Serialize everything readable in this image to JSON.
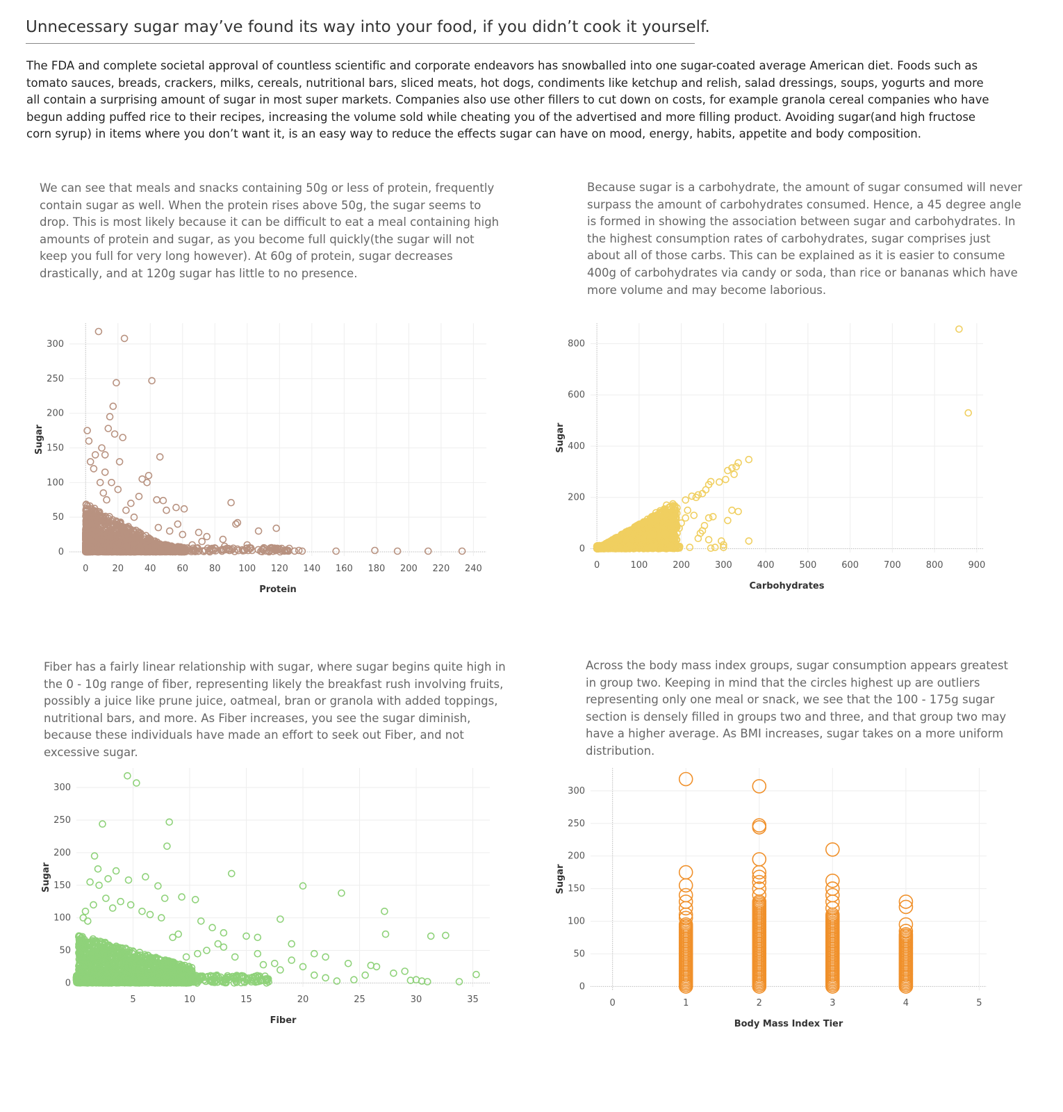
{
  "title": "Unnecessary sugar may’ve found its way into your food, if you didn’t cook it yourself.",
  "intro": "The FDA and complete societal approval of countless scientific and corporate endeavors has snowballed into one sugar-coated average American diet. Foods such as tomato sauces, breads, crackers, milks, cereals, nutritional bars, sliced meats, hot dogs, condiments like ketchup and relish, salad dressings, soups, yogurts and more all contain a surprising amount of sugar in most super markets. Companies also use other fillers to cut down on costs, for example granola cereal companies who have begun adding puffed rice to their recipes, increasing the volume sold while cheating you of the advertised and more filling product. Avoiding sugar(and high fructose corn syrup) in items where you don’t want it, is an easy way to reduce the effects sugar can have on mood, energy, habits, appetite and body composition.",
  "descriptions": {
    "protein": "We can see that meals and snacks containing 50g or less of protein, frequently contain sugar as well. When the protein rises above 50g, the sugar seems to drop. This is most likely because it can be difficult to eat a meal containing high amounts of protein and sugar, as you become full quickly(the sugar will not keep you full for very long however). At 60g of protein, sugar decreases drastically, and at 120g sugar has little to no presence.",
    "carbs": "Because sugar is a carbohydrate, the amount of sugar consumed will never surpass the amount of carbohydrates consumed. Hence, a 45 degree angle is formed in showing the association between sugar and carbohydrates. In the highest consumption rates of carbohydrates, sugar comprises just about all of those carbs. This can be explained as it is easier to consume 400g of carbohydrates via candy or soda, than rice or bananas which have more volume and may become laborious.",
    "fiber": "Fiber has a fairly linear relationship with sugar, where sugar begins quite high in the 0 - 10g range of fiber, representing likely the breakfast rush involving fruits, possibly a juice like prune juice, oatmeal, bran or granola with added toppings, nutritional bars, and more. As Fiber increases, you see the sugar diminish, because these individuals have made an effort to seek out Fiber, and not excessive sugar.",
    "bmi": "Across the body mass index groups, sugar consumption appears greatest in group two. Keeping in mind that the circles highest up are outliers representing only one meal or snack, we see that the 100 - 175g sugar section is densely filled in groups two and three, and that group two may have a higher average. As BMI increases, sugar takes on a more uniform distribution."
  },
  "chart_data": [
    {
      "id": "protein",
      "type": "scatter",
      "xlabel": "Protein",
      "ylabel": "Sugar",
      "color": "#b89280",
      "xlim": [
        -10,
        248
      ],
      "ylim": [
        -6,
        330
      ],
      "xticks": [
        0,
        20,
        40,
        60,
        80,
        100,
        120,
        140,
        160,
        180,
        200,
        220,
        240
      ],
      "yticks": [
        0,
        50,
        100,
        150,
        200,
        250,
        300
      ],
      "points": [
        [
          8,
          318
        ],
        [
          24,
          308
        ],
        [
          19,
          244
        ],
        [
          41,
          247
        ],
        [
          17,
          210
        ],
        [
          15,
          195
        ],
        [
          14,
          178
        ],
        [
          18,
          170
        ],
        [
          23,
          165
        ],
        [
          46,
          137
        ],
        [
          1,
          175
        ],
        [
          2,
          160
        ],
        [
          10,
          150
        ],
        [
          12,
          140
        ],
        [
          21,
          130
        ],
        [
          35,
          105
        ],
        [
          38,
          100
        ],
        [
          39,
          110
        ],
        [
          44,
          75
        ],
        [
          48,
          74
        ],
        [
          56,
          64
        ],
        [
          61,
          62
        ],
        [
          50,
          60
        ],
        [
          57,
          40
        ],
        [
          90,
          71
        ],
        [
          94,
          42
        ],
        [
          93,
          40
        ],
        [
          107,
          30
        ],
        [
          118,
          34
        ],
        [
          70,
          28
        ],
        [
          75,
          22
        ],
        [
          85,
          18
        ],
        [
          100,
          10
        ],
        [
          110,
          3
        ],
        [
          120,
          4
        ],
        [
          126,
          5
        ],
        [
          132,
          2
        ],
        [
          134,
          1
        ],
        [
          155,
          1
        ],
        [
          179,
          2
        ],
        [
          193,
          1
        ],
        [
          212,
          1
        ],
        [
          233,
          1
        ],
        [
          80,
          5
        ],
        [
          86,
          8
        ],
        [
          97,
          3
        ],
        [
          103,
          2
        ],
        [
          115,
          6
        ],
        [
          123,
          1
        ],
        [
          66,
          10
        ],
        [
          72,
          15
        ],
        [
          60,
          25
        ],
        [
          52,
          30
        ],
        [
          45,
          35
        ],
        [
          30,
          50
        ],
        [
          25,
          60
        ],
        [
          28,
          70
        ],
        [
          33,
          80
        ],
        [
          20,
          90
        ],
        [
          16,
          100
        ],
        [
          12,
          115
        ],
        [
          5,
          120
        ],
        [
          3,
          130
        ],
        [
          6,
          140
        ],
        [
          9,
          100
        ],
        [
          11,
          85
        ],
        [
          13,
          75
        ]
      ],
      "dense": [
        [
          0,
          0,
          45,
          70,
          900,
          "tri"
        ],
        [
          0,
          0,
          62,
          30,
          500,
          "tri"
        ],
        [
          0,
          0,
          130,
          6,
          300,
          "band"
        ]
      ]
    },
    {
      "id": "carbs",
      "type": "scatter",
      "xlabel": "Carbohydrates",
      "ylabel": "Sugar",
      "color": "#f0cf60",
      "xlim": [
        -15,
        915
      ],
      "ylim": [
        -15,
        880
      ],
      "xticks": [
        0,
        100,
        200,
        300,
        400,
        500,
        600,
        700,
        800,
        900
      ],
      "yticks": [
        0,
        200,
        400,
        600,
        800
      ],
      "points": [
        [
          858,
          857
        ],
        [
          880,
          530
        ],
        [
          360,
          348
        ],
        [
          335,
          335
        ],
        [
          330,
          320
        ],
        [
          320,
          315
        ],
        [
          310,
          305
        ],
        [
          325,
          290
        ],
        [
          305,
          270
        ],
        [
          290,
          260
        ],
        [
          270,
          262
        ],
        [
          265,
          250
        ],
        [
          258,
          230
        ],
        [
          250,
          215
        ],
        [
          240,
          210
        ],
        [
          235,
          200
        ],
        [
          225,
          205
        ],
        [
          210,
          190
        ],
        [
          320,
          150
        ],
        [
          335,
          145
        ],
        [
          310,
          110
        ],
        [
          275,
          125
        ],
        [
          265,
          120
        ],
        [
          255,
          90
        ],
        [
          250,
          70
        ],
        [
          245,
          60
        ],
        [
          240,
          40
        ],
        [
          265,
          35
        ],
        [
          295,
          30
        ],
        [
          300,
          15
        ],
        [
          360,
          30
        ],
        [
          300,
          5
        ],
        [
          280,
          5
        ],
        [
          270,
          2
        ],
        [
          220,
          5
        ],
        [
          215,
          150
        ],
        [
          230,
          130
        ],
        [
          210,
          120
        ],
        [
          200,
          100
        ],
        [
          195,
          80
        ],
        [
          190,
          60
        ],
        [
          185,
          40
        ],
        [
          180,
          20
        ],
        [
          175,
          10
        ],
        [
          172,
          160
        ],
        [
          180,
          175
        ],
        [
          165,
          170
        ],
        [
          160,
          155
        ],
        [
          150,
          148
        ],
        [
          140,
          140
        ],
        [
          130,
          125
        ],
        [
          120,
          115
        ],
        [
          110,
          100
        ],
        [
          100,
          95
        ]
      ],
      "dense": [
        [
          0,
          0,
          190,
          170,
          1400,
          "under"
        ],
        [
          0,
          0,
          200,
          12,
          300,
          "band"
        ]
      ]
    },
    {
      "id": "fiber",
      "type": "scatter",
      "xlabel": "Fiber",
      "ylabel": "Sugar",
      "color": "#8fd27a",
      "xlim": [
        0,
        36.5
      ],
      "ylim": [
        -6,
        330
      ],
      "xticks": [
        5,
        10,
        15,
        20,
        25,
        30,
        35
      ],
      "yticks": [
        0,
        50,
        100,
        150,
        200,
        250,
        300
      ],
      "points": [
        [
          4.5,
          318
        ],
        [
          5.3,
          307
        ],
        [
          2.3,
          244
        ],
        [
          8.2,
          247
        ],
        [
          8.0,
          210
        ],
        [
          1.6,
          195
        ],
        [
          1.9,
          175
        ],
        [
          2.8,
          160
        ],
        [
          3.5,
          172
        ],
        [
          4.6,
          158
        ],
        [
          6.1,
          163
        ],
        [
          1.2,
          155
        ],
        [
          2.0,
          150
        ],
        [
          7.2,
          149
        ],
        [
          7.8,
          130
        ],
        [
          9.3,
          132
        ],
        [
          10.5,
          128
        ],
        [
          13.7,
          168
        ],
        [
          20,
          149
        ],
        [
          23.4,
          138
        ],
        [
          27.2,
          110
        ],
        [
          27.3,
          75
        ],
        [
          31.3,
          72
        ],
        [
          32.6,
          73
        ],
        [
          18,
          98
        ],
        [
          19,
          60
        ],
        [
          21,
          45
        ],
        [
          15,
          72
        ],
        [
          16,
          70
        ],
        [
          12,
          85
        ],
        [
          11,
          95
        ],
        [
          13,
          77
        ],
        [
          22,
          40
        ],
        [
          24,
          30
        ],
        [
          26,
          27
        ],
        [
          28,
          15
        ],
        [
          29,
          18
        ],
        [
          30,
          5
        ],
        [
          30.5,
          3
        ],
        [
          29.5,
          4
        ],
        [
          31,
          2
        ],
        [
          33.8,
          2
        ],
        [
          35.3,
          13
        ],
        [
          26.5,
          25
        ],
        [
          25.5,
          12
        ],
        [
          24.5,
          5
        ],
        [
          23,
          3
        ],
        [
          22,
          8
        ],
        [
          21,
          12
        ],
        [
          20,
          25
        ],
        [
          19,
          35
        ],
        [
          18,
          20
        ],
        [
          17.5,
          30
        ],
        [
          16.5,
          28
        ],
        [
          16,
          45
        ],
        [
          14,
          40
        ],
        [
          13,
          55
        ],
        [
          12.5,
          60
        ],
        [
          11.5,
          50
        ],
        [
          10.7,
          45
        ],
        [
          9.7,
          40
        ],
        [
          9,
          75
        ],
        [
          8.5,
          70
        ],
        [
          7.5,
          100
        ],
        [
          6.5,
          105
        ],
        [
          5.8,
          110
        ],
        [
          4.8,
          120
        ],
        [
          3.9,
          125
        ],
        [
          3.2,
          115
        ],
        [
          2.6,
          130
        ],
        [
          1.5,
          120
        ],
        [
          0.8,
          110
        ],
        [
          0.6,
          100
        ],
        [
          1.0,
          95
        ]
      ],
      "dense": [
        [
          0,
          0,
          10,
          75,
          1400,
          "fiber"
        ],
        [
          0,
          0,
          17,
          12,
          500,
          "band"
        ]
      ]
    },
    {
      "id": "bmi",
      "type": "scatter",
      "xlabel": "Body Mass Index Tier",
      "ylabel": "Sugar",
      "color": "#f0902a",
      "xlim": [
        -0.3,
        5.1
      ],
      "ylim": [
        -6,
        335
      ],
      "xticks": [
        0,
        1,
        2,
        3,
        4,
        5
      ],
      "yticks": [
        0,
        50,
        100,
        150,
        200,
        250,
        300
      ],
      "tiers": [
        {
          "x": 1,
          "top": 95,
          "outliers": [
            318,
            175,
            155,
            140,
            130,
            120,
            110,
            105
          ]
        },
        {
          "x": 2,
          "top": 130,
          "outliers": [
            307,
            247,
            244,
            195,
            175,
            168,
            160,
            150,
            140
          ]
        },
        {
          "x": 3,
          "top": 110,
          "outliers": [
            210,
            162,
            150,
            140,
            130,
            120
          ]
        },
        {
          "x": 4,
          "top": 80,
          "outliers": [
            130,
            122,
            95,
            85
          ]
        }
      ]
    }
  ]
}
